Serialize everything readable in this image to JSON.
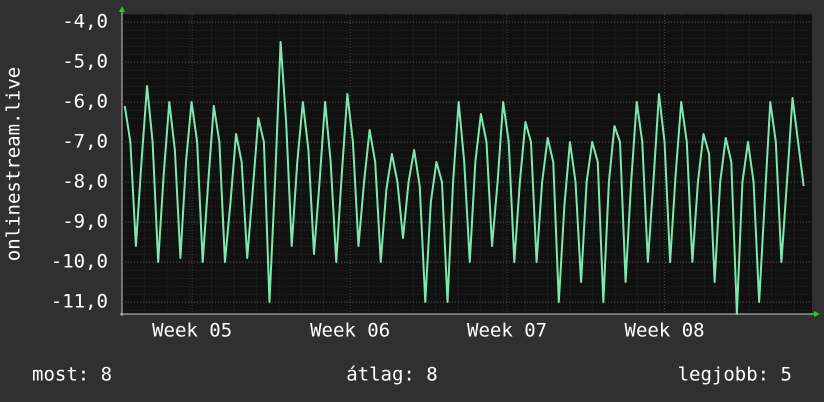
{
  "chart_data": {
    "type": "line",
    "y_label": "onlinestream.live",
    "series": [
      {
        "name": "onlinestream.live",
        "color": "#7de8b4",
        "values": [
          -6.1,
          -7.0,
          -9.6,
          -7.5,
          -5.6,
          -7.0,
          -10.0,
          -7.8,
          -6.0,
          -7.2,
          -9.9,
          -7.5,
          -6.0,
          -7.0,
          -10.0,
          -8.0,
          -6.1,
          -7.0,
          -10.0,
          -8.5,
          -6.8,
          -7.5,
          -9.9,
          -8.2,
          -6.4,
          -7.0,
          -11.0,
          -8.0,
          -4.5,
          -6.5,
          -9.6,
          -7.5,
          -6.0,
          -7.2,
          -9.8,
          -8.0,
          -6.0,
          -7.5,
          -10.0,
          -7.8,
          -5.8,
          -7.0,
          -9.6,
          -8.0,
          -6.7,
          -7.5,
          -10.0,
          -8.2,
          -7.3,
          -8.0,
          -9.4,
          -8.0,
          -7.2,
          -8.1,
          -11.0,
          -8.5,
          -7.5,
          -8.0,
          -11.0,
          -8.0,
          -6.0,
          -7.5,
          -10.0,
          -7.5,
          -6.3,
          -7.0,
          -9.6,
          -8.0,
          -6.0,
          -7.0,
          -10.0,
          -8.0,
          -6.5,
          -7.0,
          -10.0,
          -8.0,
          -6.9,
          -7.5,
          -11.0,
          -8.6,
          -7.0,
          -8.0,
          -10.5,
          -8.0,
          -7.0,
          -7.5,
          -11.0,
          -8.0,
          -6.6,
          -7.0,
          -10.5,
          -8.0,
          -6.0,
          -7.0,
          -10.0,
          -8.0,
          -5.8,
          -7.0,
          -10.0,
          -7.8,
          -6.0,
          -7.0,
          -10.0,
          -8.0,
          -6.8,
          -7.3,
          -10.5,
          -8.0,
          -6.9,
          -7.5,
          -11.3,
          -8.0,
          -7.0,
          -8.0,
          -11.0,
          -8.5,
          -6.0,
          -7.0,
          -10.0,
          -8.0,
          -5.9,
          -7.0,
          -8.1
        ]
      }
    ],
    "xlim": [
      -0.5,
      123.5
    ],
    "xticks": [
      {
        "value": 12.1,
        "label": "Week 05"
      },
      {
        "value": 40.5,
        "label": "Week 06"
      },
      {
        "value": 68.7,
        "label": "Week 07"
      },
      {
        "value": 97.0,
        "label": "Week 08"
      }
    ],
    "ylim": [
      -11.3,
      -3.8
    ],
    "yticks": [
      {
        "value": -4,
        "label": "-4,0"
      },
      {
        "value": -5,
        "label": "-5,0"
      },
      {
        "value": -6,
        "label": "-6,0"
      },
      {
        "value": -7,
        "label": "-7,0"
      },
      {
        "value": -8,
        "label": "-8,0"
      },
      {
        "value": -9,
        "label": "-9,0"
      },
      {
        "value": -10,
        "label": "-10,0"
      },
      {
        "value": -11,
        "label": "-11,0"
      }
    ],
    "grid": true,
    "footer": {
      "current": "most: 8",
      "average": "átlag: 8",
      "best": "legjobb: 5"
    }
  }
}
